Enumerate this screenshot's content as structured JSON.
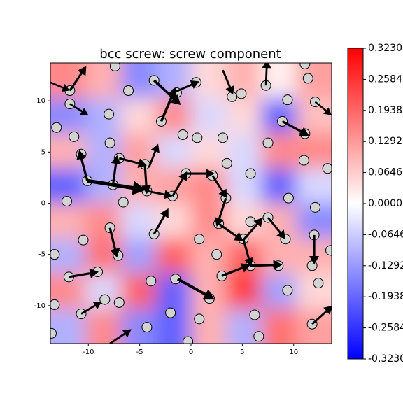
{
  "chart_data": {
    "type": "quiver",
    "title": "bcc screw: screw component",
    "xlim": [
      -13.7,
      13.7
    ],
    "ylim": [
      -13.7,
      13.7
    ],
    "xticks": [
      -10,
      -5,
      0,
      5,
      10
    ],
    "yticks": [
      -10,
      -5,
      0,
      5,
      10
    ],
    "colormap": "bwr",
    "clim": [
      -0.323,
      0.323
    ],
    "colorbar_ticks": [
      {
        "value": 0.323,
        "label": "0.3230"
      },
      {
        "value": 0.2584,
        "label": "0.2584"
      },
      {
        "value": 0.1938,
        "label": "0.1938"
      },
      {
        "value": 0.1292,
        "label": "0.1292"
      },
      {
        "value": 0.0646,
        "label": "0.0646"
      },
      {
        "value": 0,
        "label": "0.0000"
      },
      {
        "value": -0.0646,
        "label": "-0.0646"
      },
      {
        "value": -0.1292,
        "label": "-0.1292"
      },
      {
        "value": -0.1938,
        "label": "-0.1938"
      },
      {
        "value": -0.2584,
        "label": "-0.2584"
      },
      {
        "value": -0.323,
        "label": "-0.3230"
      }
    ],
    "field": {
      "x": [
        -11.99,
        -8.56,
        -5.14,
        -1.71,
        1.71,
        5.14,
        8.56,
        11.99
      ],
      "y": [
        11.99,
        8.56,
        5.14,
        1.71,
        -1.71,
        -5.14,
        -8.56,
        -11.99
      ],
      "values": [
        [
          0.15,
          0.1,
          -0.15,
          -0.1,
          0.05,
          0.1,
          0.02,
          0.12
        ],
        [
          -0.15,
          -0.1,
          0.05,
          0.15,
          -0.05,
          0.05,
          -0.2,
          0.08
        ],
        [
          0.1,
          -0.1,
          0.12,
          -0.05,
          0.05,
          -0.05,
          0.15,
          0.15
        ],
        [
          -0.2,
          -0.1,
          0.1,
          0.12,
          0.15,
          -0.05,
          -0.2,
          -0.05
        ],
        [
          0.1,
          0.15,
          -0.05,
          0.05,
          0.15,
          0.05,
          0.1,
          -0.15
        ],
        [
          -0.1,
          0.18,
          -0.12,
          0.2,
          0.1,
          0.2,
          0.1,
          0.1
        ],
        [
          0.15,
          -0.05,
          0.2,
          -0.2,
          0.1,
          0.25,
          -0.12,
          0.05
        ],
        [
          -0.1,
          0.15,
          -0.15,
          -0.2,
          0.1,
          -0.1,
          0.18,
          0.12
        ]
      ]
    },
    "atoms": {
      "x": [
        -11.8,
        -11.8,
        -13.1,
        -11.4,
        -10.7,
        -10.1,
        -12.1,
        -10.5,
        -13.3,
        -11.9,
        -13.3,
        -10.7,
        -13.6,
        -8.0,
        -7.9,
        -7.0,
        -7.6,
        -6.6,
        -4.5,
        -4.3,
        -1.8,
        -0.5,
        2.1,
        3.5,
        3.4,
        2.7,
        5.8,
        5.1,
        5.8,
        7.5,
        11.0,
        13.3,
        9.5,
        12.1,
        12.0,
        9.2,
        7.5,
        13.6,
        11.8,
        5.8,
        8.5,
        3.0,
        2.5,
        9.4,
        12.4,
        11.8,
        6.2,
        6.6,
        1.8,
        0.8,
        -0.3,
        -2.0,
        -4.3,
        -7.0,
        -8.4,
        -9.1,
        -7.1,
        -7.9,
        -3.6,
        -1.5,
        -3.9,
        0.8,
        -2.9,
        -0.8,
        0.6,
        3.1,
        0.5,
        -1.4,
        -3.6,
        -6.1,
        -7.4,
        4.0,
        4.9,
        7.3,
        9.4,
        11.4,
        12.1,
        11.1,
        8.9,
        11.1
      ],
      "y": [
        11.0,
        9.7,
        7.4,
        6.5,
        4.8,
        2.2,
        0.2,
        -3.6,
        -5.0,
        -7.2,
        -9.9,
        -10.8,
        -12.7,
        8.7,
        5.9,
        4.4,
        1.8,
        0.1,
        3.8,
        1.2,
        0.7,
        2.9,
        2.7,
        3.9,
        0.5,
        -2.0,
        -1.8,
        -3.5,
        2.9,
        5.9,
        4.2,
        3.4,
        0.5,
        -0.4,
        -3.1,
        -3.5,
        -1.4,
        -4.6,
        -6.1,
        -6.1,
        -6.1,
        -7.1,
        -5.0,
        -8.5,
        -7.8,
        -11.8,
        -10.9,
        -13.0,
        -9.3,
        -11.3,
        -13.5,
        -10.7,
        -12.1,
        -9.7,
        -9.4,
        -6.7,
        -5.1,
        -2.4,
        -3.0,
        -7.4,
        -7.6,
        -3.5,
        8.0,
        6.7,
        6.4,
        6.4,
        11.8,
        10.8,
        12.0,
        11.0,
        13.4,
        10.4,
        10.7,
        11.5,
        10.1,
        12.2,
        9.9,
        13.6,
        8.0,
        6.8
      ]
    },
    "arrows": {
      "x": [
        -11.8,
        -2.9,
        -3.6,
        -1.5,
        7.3,
        3.1,
        -10.1,
        -10.1,
        -7.6,
        -7.0,
        -4.5,
        -4.3,
        -4.1,
        -1.8,
        -0.5,
        2.1,
        3.4,
        2.7,
        5.1,
        5.8,
        3.0,
        5.1,
        7.5,
        12.0,
        -1.3,
        -3.6,
        -7.9,
        -11.9,
        -10.7,
        -7.9,
        11.8,
        8.9,
        -11.8,
        -13.7,
        12.1
      ],
      "y": [
        11.0,
        8.0,
        12.0,
        10.9,
        11.5,
        13.0,
        2.2,
        2.2,
        1.8,
        4.4,
        3.8,
        1.2,
        3.5,
        0.7,
        2.9,
        2.7,
        0.5,
        -2.0,
        -3.5,
        -6.1,
        -7.1,
        -3.6,
        -1.4,
        -3.1,
        -7.4,
        -3.0,
        -2.4,
        -7.2,
        -10.8,
        -13.7,
        -11.8,
        8.0,
        9.7,
        11.8,
        9.9
      ],
      "u": [
        1.6,
        1.4,
        2.6,
        2.3,
        0.1,
        1.0,
        -0.8,
        5.7,
        0.4,
        2.7,
        0.2,
        2.5,
        0.9,
        1.4,
        2.8,
        1.4,
        -0.9,
        2.4,
        0.75,
        3.1,
        2.8,
        1.9,
        1.7,
        0,
        3.6,
        1.4,
        0.7,
        2.9,
        2.0,
        2.1,
        2.0,
        2.6,
        1.8,
        1.9,
        1.6
      ],
      "v": [
        2.4,
        3.3,
        -2.4,
        1.0,
        2.5,
        -2.4,
        3.0,
        -0.9,
        2.9,
        -0.7,
        -2.9,
        -0.5,
        2.3,
        2.4,
        0,
        -2.2,
        -2.8,
        -1.7,
        -2.7,
        0.1,
        1.1,
        2.2,
        -2.1,
        -2.9,
        -2.0,
        2.5,
        -2.9,
        0.5,
        1.2,
        1.4,
        1.8,
        -1.4,
        -1.1,
        -0.8,
        -1.3
      ]
    }
  }
}
